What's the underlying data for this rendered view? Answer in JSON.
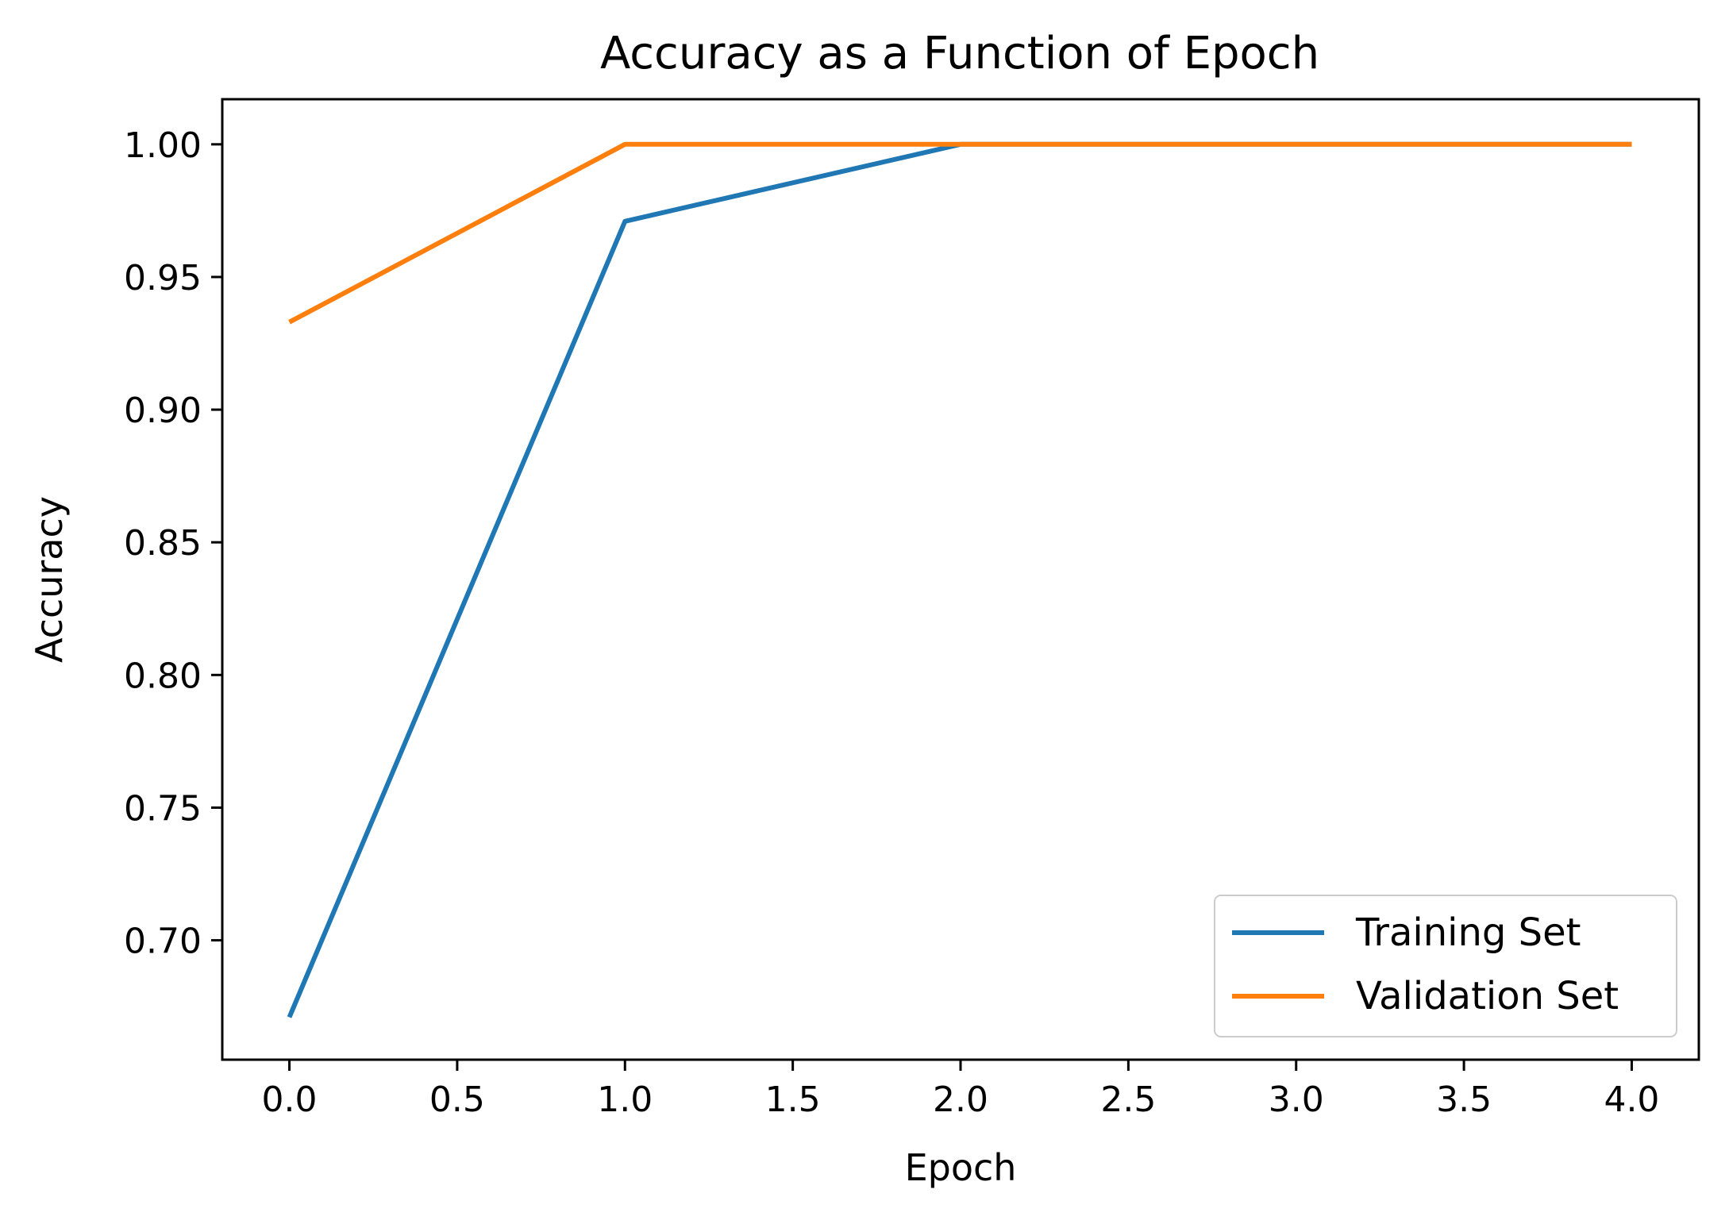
{
  "chart_data": {
    "type": "line",
    "title": "Accuracy as a Function of Epoch",
    "xlabel": "Epoch",
    "ylabel": "Accuracy",
    "xlim": [
      -0.2,
      4.2
    ],
    "ylim": [
      0.655,
      1.017
    ],
    "xticks": [
      "0.0",
      "0.5",
      "1.0",
      "1.5",
      "2.0",
      "2.5",
      "3.0",
      "3.5",
      "4.0"
    ],
    "yticks": [
      "0.70",
      "0.75",
      "0.80",
      "0.85",
      "0.90",
      "0.95",
      "1.00"
    ],
    "x": [
      0,
      1,
      2,
      3,
      4
    ],
    "series": [
      {
        "name": "Training Set",
        "values": [
          0.671,
          0.971,
          1.0,
          1.0,
          1.0
        ],
        "color": "#1f77b4"
      },
      {
        "name": "Validation Set",
        "values": [
          0.933,
          1.0,
          1.0,
          1.0,
          1.0
        ],
        "color": "#ff7f0e"
      }
    ],
    "grid": false,
    "legend_position": "lower-right"
  }
}
